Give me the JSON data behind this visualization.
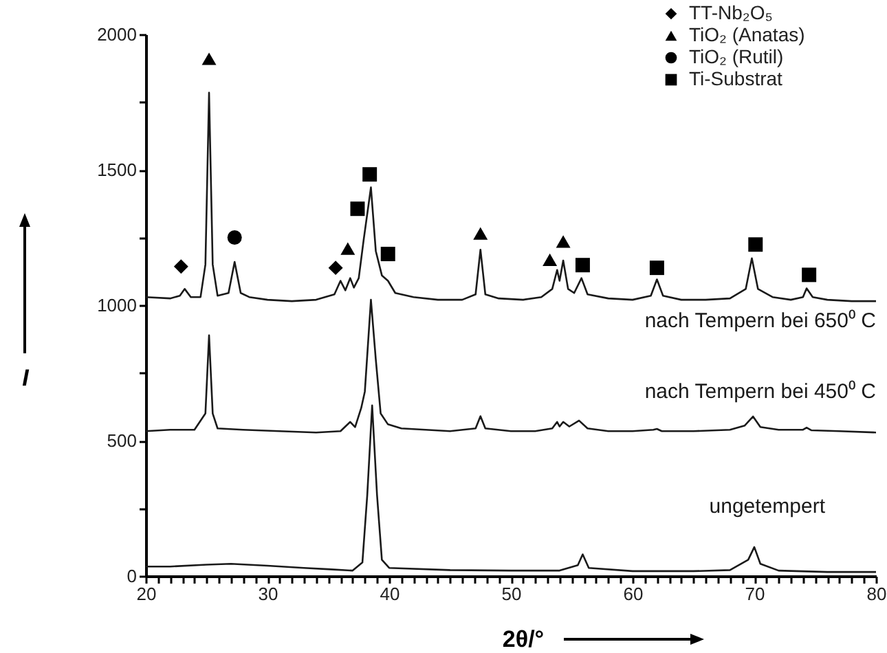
{
  "chart_data": {
    "type": "line",
    "xlabel": "2θ/°",
    "ylabel": "I",
    "xlim": [
      20,
      80
    ],
    "ylim": [
      0,
      2000
    ],
    "xticks": [
      20,
      {
        "value": 21,
        "label": null
      },
      {
        "value": 22,
        "label": null
      },
      {
        "value": 23,
        "label": null
      },
      {
        "value": 24,
        "label": null
      },
      {
        "value": 25,
        "label": null
      },
      {
        "value": 26,
        "label": null
      },
      {
        "value": 27,
        "label": null
      },
      {
        "value": 28,
        "label": null
      },
      {
        "value": 29,
        "label": null
      },
      30,
      {
        "value": 31,
        "label": null
      },
      {
        "value": 32,
        "label": null
      },
      {
        "value": 33,
        "label": null
      },
      {
        "value": 34,
        "label": null
      },
      {
        "value": 35,
        "label": null
      },
      {
        "value": 36,
        "label": null
      },
      {
        "value": 37,
        "label": null
      },
      {
        "value": 38,
        "label": null
      },
      {
        "value": 39,
        "label": null
      },
      40,
      {
        "value": 41,
        "label": null
      },
      {
        "value": 42,
        "label": null
      },
      {
        "value": 43,
        "label": null
      },
      {
        "value": 44,
        "label": null
      },
      {
        "value": 45,
        "label": null
      },
      {
        "value": 46,
        "label": null
      },
      {
        "value": 47,
        "label": null
      },
      {
        "value": 48,
        "label": null
      },
      {
        "value": 49,
        "label": null
      },
      50,
      {
        "value": 51,
        "label": null
      },
      {
        "value": 52,
        "label": null
      },
      {
        "value": 53,
        "label": null
      },
      {
        "value": 54,
        "label": null
      },
      {
        "value": 55,
        "label": null
      },
      {
        "value": 56,
        "label": null
      },
      {
        "value": 57,
        "label": null
      },
      {
        "value": 58,
        "label": null
      },
      {
        "value": 59,
        "label": null
      },
      60,
      {
        "value": 61,
        "label": null
      },
      {
        "value": 62,
        "label": null
      },
      {
        "value": 63,
        "label": null
      },
      {
        "value": 64,
        "label": null
      },
      {
        "value": 65,
        "label": null
      },
      {
        "value": 66,
        "label": null
      },
      {
        "value": 67,
        "label": null
      },
      {
        "value": 68,
        "label": null
      },
      {
        "value": 69,
        "label": null
      },
      70,
      {
        "value": 71,
        "label": null
      },
      {
        "value": 72,
        "label": null
      },
      {
        "value": 73,
        "label": null
      },
      {
        "value": 74,
        "label": null
      },
      {
        "value": 75,
        "label": null
      },
      {
        "value": 76,
        "label": null
      },
      {
        "value": 77,
        "label": null
      },
      {
        "value": 78,
        "label": null
      },
      {
        "value": 79,
        "label": null
      },
      80
    ],
    "yticks": [
      0,
      {
        "value": 250,
        "label": null
      },
      500,
      {
        "value": 750,
        "label": null
      },
      1000,
      {
        "value": 1250,
        "label": null
      },
      1500,
      {
        "value": 1750,
        "label": null
      },
      2000
    ],
    "grid": false,
    "legend": "top right",
    "line_style": "solid",
    "series": [
      {
        "name": "nach Tempern bei 650⁰ C",
        "type": "line",
        "color": "#1a1a1a",
        "x": [
          20,
          22,
          22.8,
          23.2,
          23.7,
          24.5,
          24.9,
          25.2,
          25.5,
          25.9,
          26.8,
          27.3,
          27.8,
          28.5,
          30,
          32,
          34,
          35.5,
          36.0,
          36.4,
          36.8,
          37.1,
          37.5,
          37.9,
          38.5,
          38.9,
          39.4,
          39.9,
          40.5,
          42,
          44,
          46,
          47.1,
          47.5,
          47.9,
          49,
          51,
          52.5,
          53.4,
          53.8,
          54.0,
          54.3,
          54.7,
          55.2,
          55.8,
          56.3,
          58,
          60,
          61.5,
          62,
          62.5,
          64,
          66,
          68,
          69.3,
          69.8,
          70.3,
          71.5,
          73,
          74,
          74.3,
          74.8,
          76,
          78,
          80
        ],
        "values": [
          1030,
          1025,
          1035,
          1060,
          1030,
          1030,
          1150,
          1785,
          1150,
          1035,
          1045,
          1160,
          1045,
          1030,
          1020,
          1015,
          1020,
          1040,
          1090,
          1055,
          1100,
          1065,
          1100,
          1240,
          1435,
          1200,
          1110,
          1090,
          1045,
          1030,
          1020,
          1020,
          1040,
          1205,
          1040,
          1025,
          1020,
          1030,
          1060,
          1130,
          1090,
          1165,
          1060,
          1045,
          1100,
          1040,
          1025,
          1020,
          1035,
          1095,
          1035,
          1020,
          1020,
          1025,
          1060,
          1173,
          1060,
          1030,
          1020,
          1030,
          1062,
          1030,
          1020,
          1015,
          1015
        ]
      },
      {
        "name": "nach Tempern bei 450⁰ C",
        "type": "line",
        "color": "#1a1a1a",
        "x": [
          20,
          22,
          24,
          24.9,
          25.2,
          25.5,
          25.9,
          28,
          31,
          34,
          36,
          36.8,
          37.2,
          37.7,
          38,
          38.5,
          38.9,
          39.3,
          39.9,
          41,
          43,
          45,
          47.1,
          47.5,
          47.9,
          50,
          52,
          53.4,
          53.8,
          54.0,
          54.3,
          54.8,
          55.6,
          56.3,
          58,
          60,
          61.7,
          62,
          62.4,
          65,
          68,
          69.2,
          69.9,
          70.5,
          72,
          74,
          74.3,
          74.7,
          77,
          80
        ],
        "values": [
          535,
          540,
          540,
          600,
          889,
          600,
          545,
          540,
          535,
          530,
          535,
          569,
          550,
          620,
          681,
          1020,
          800,
          600,
          560,
          545,
          540,
          535,
          545,
          590,
          545,
          535,
          535,
          545,
          569,
          552,
          569,
          552,
          574,
          545,
          535,
          535,
          540,
          543,
          535,
          535,
          540,
          555,
          589,
          550,
          540,
          540,
          548,
          538,
          535,
          530
        ]
      },
      {
        "name": "ungetempert",
        "type": "line",
        "color": "#1a1a1a",
        "x": [
          20,
          22,
          25,
          27,
          30,
          33,
          35,
          37,
          37.8,
          38.2,
          38.6,
          39.0,
          39.4,
          40,
          45,
          50,
          54,
          55.5,
          55.9,
          56.4,
          60,
          65,
          68,
          69.5,
          70,
          70.5,
          72,
          76,
          80
        ],
        "values": [
          35,
          35,
          42,
          45,
          38,
          30,
          25,
          20,
          50,
          300,
          630,
          300,
          60,
          30,
          22,
          20,
          20,
          40,
          80,
          30,
          18,
          18,
          22,
          60,
          107,
          45,
          20,
          15,
          15
        ]
      },
      {
        "name": "TT-Nb₂O₅",
        "type": "scatter",
        "marker": "diamond",
        "color": "#000000",
        "x": [
          22.9,
          35.6
        ],
        "values": [
          1143,
          1138
        ]
      },
      {
        "name": "TiO₂ (Anatas)",
        "type": "scatter",
        "marker": "triangle",
        "color": "#000000",
        "x": [
          25.2,
          36.6,
          47.5,
          53.2,
          54.3
        ],
        "values": [
          1910,
          1209,
          1265,
          1168,
          1235
        ]
      },
      {
        "name": "TiO₂ (Rutil)",
        "type": "scatter",
        "marker": "circle",
        "color": "#000000",
        "x": [
          27.3
        ],
        "values": [
          1250
        ]
      },
      {
        "name": "Ti-Substrat",
        "type": "scatter",
        "marker": "square",
        "color": "#000000",
        "x": [
          37.4,
          38.4,
          39.9,
          55.9,
          62.0,
          70.1,
          74.5
        ],
        "values": [
          1356,
          1483,
          1189,
          1148,
          1138,
          1224,
          1112
        ]
      }
    ]
  }
}
